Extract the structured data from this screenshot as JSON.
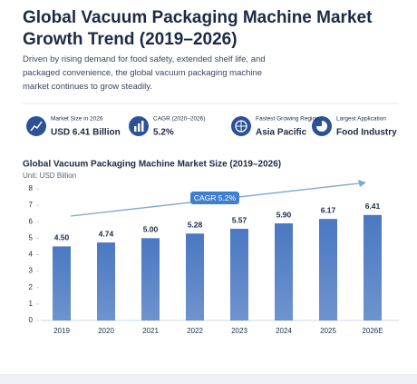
{
  "header": {
    "title": "Global Vacuum Packaging Machine Market Growth Trend (2019–2026)",
    "description": "Driven by rising demand for food safety, extended shelf life, and packaged convenience, the global vacuum packaging machine market continues to grow steadily."
  },
  "stats": [
    {
      "label": "Market Size in 2026",
      "value": "USD 6.41 Billion"
    },
    {
      "label": "CAGR (2020–2026)",
      "value": "5.2%"
    },
    {
      "label": "Fastest Growing Region",
      "value": "Asia Pacific"
    },
    {
      "label": "Largest Application",
      "value": "Food Industry"
    }
  ],
  "chart_data": {
    "type": "bar",
    "title": "Global Vacuum Packaging Machine Market Size (2019–2026)",
    "subtitle": "Unit: USD Billion",
    "categories": [
      "2019",
      "2020",
      "2021",
      "2022",
      "2023",
      "2024",
      "2025",
      "2026E"
    ],
    "values": [
      4.5,
      4.74,
      5,
      5.28,
      5.57,
      5.9,
      6.17,
      6.41
    ],
    "value_labels": [
      "4.50",
      "4.74",
      "5.00",
      "5.28",
      "5.57",
      "5.90",
      "6.17",
      "6.41"
    ],
    "color": "#4a78c2",
    "annotation": "CAGR 5.2%",
    "ylim": [
      0,
      8
    ],
    "yticks": [
      0,
      1,
      2,
      3,
      4,
      5,
      6,
      7,
      8
    ]
  }
}
